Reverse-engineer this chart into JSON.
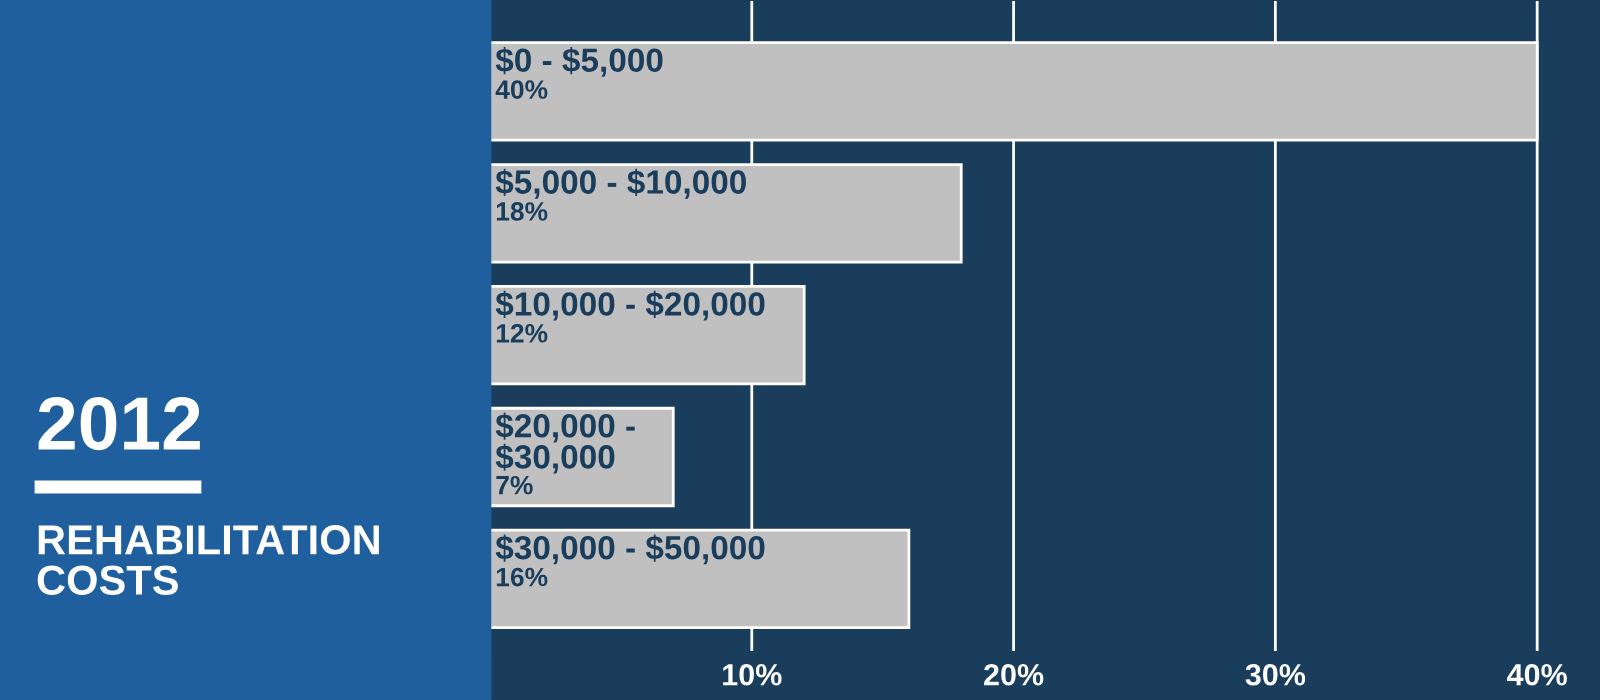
{
  "chart_data": {
    "type": "bar",
    "orientation": "horizontal",
    "title": "2012",
    "subtitle": "REHABILITATION COSTS",
    "categories": [
      "$0 - $5,000",
      "$5,000 - $10,000",
      "$10,000 - $20,000",
      "$20,000 - $30,000",
      "$30,000 - $50,000"
    ],
    "values": [
      40,
      18,
      12,
      7,
      16
    ],
    "value_labels": [
      "40%",
      "18%",
      "12%",
      "7%",
      "16%"
    ],
    "color": "#c0c0c0",
    "xlim": [
      0,
      42.4
    ],
    "xticks": [
      {
        "value": 10,
        "label": "10%"
      },
      {
        "value": 20,
        "label": "20%"
      },
      {
        "value": 30,
        "label": "30%"
      },
      {
        "value": 40,
        "label": "40%"
      }
    ],
    "grid": "x"
  }
}
